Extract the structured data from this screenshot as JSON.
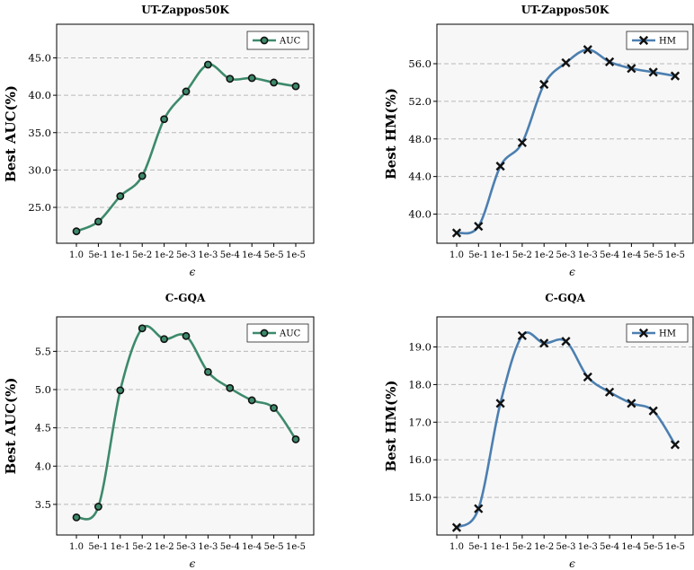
{
  "colors": {
    "auc": "#3d8a6b",
    "hm": "#4c7fb0",
    "grid": "#b8b8b8",
    "plot_bg": "#f7f7f7"
  },
  "chart_data": [
    {
      "type": "line",
      "title": "UT-Zappos50K",
      "xlabel": "ϵ",
      "ylabel": "Best AUC(%)",
      "categories": [
        "1.0",
        "5e-1",
        "1e-1",
        "5e-2",
        "1e-2",
        "5e-3",
        "1e-3",
        "5e-4",
        "1e-4",
        "5e-5",
        "1e-5"
      ],
      "series": [
        {
          "name": "AUC",
          "values": [
            21.8,
            23.1,
            26.5,
            29.2,
            36.8,
            40.5,
            44.1,
            42.2,
            42.3,
            41.7,
            41.2
          ]
        }
      ],
      "yticks": [
        25.0,
        30.0,
        35.0,
        40.0,
        45.0
      ],
      "ylim": [
        20.2,
        49.5
      ],
      "marker": "circle",
      "color_key": "auc",
      "grid": "y-dashed",
      "legend": "top-right"
    },
    {
      "type": "line",
      "title": "UT-Zappos50K",
      "xlabel": "ϵ",
      "ylabel": "Best HM(%)",
      "categories": [
        "1.0",
        "5e-1",
        "1e-1",
        "5e-2",
        "1e-2",
        "5e-3",
        "1e-3",
        "5e-4",
        "1e-4",
        "5e-5",
        "1e-5"
      ],
      "series": [
        {
          "name": "HM",
          "values": [
            38.0,
            38.7,
            45.1,
            47.6,
            53.8,
            56.1,
            57.5,
            56.2,
            55.5,
            55.1,
            54.7
          ]
        }
      ],
      "yticks": [
        40.0,
        44.0,
        48.0,
        52.0,
        56.0
      ],
      "ylim": [
        36.9,
        60.2
      ],
      "marker": "x",
      "color_key": "hm",
      "grid": "y-dashed",
      "legend": "top-right"
    },
    {
      "type": "line",
      "title": "C-GQA",
      "xlabel": "ϵ",
      "ylabel": "Best AUC(%)",
      "categories": [
        "1.0",
        "5e-1",
        "1e-1",
        "5e-2",
        "1e-2",
        "5e-3",
        "1e-3",
        "5e-4",
        "1e-4",
        "5e-5",
        "1e-5"
      ],
      "series": [
        {
          "name": "AUC",
          "values": [
            3.33,
            3.47,
            4.99,
            5.8,
            5.66,
            5.7,
            5.23,
            5.02,
            4.86,
            4.76,
            4.35
          ]
        }
      ],
      "yticks": [
        3.5,
        4.0,
        4.5,
        5.0,
        5.5
      ],
      "ylim": [
        3.1,
        5.95
      ],
      "marker": "circle",
      "color_key": "auc",
      "grid": "y-dashed",
      "legend": "top-right"
    },
    {
      "type": "line",
      "title": "C-GQA",
      "xlabel": "ϵ",
      "ylabel": "Best HM(%)",
      "categories": [
        "1.0",
        "5e-1",
        "1e-1",
        "5e-2",
        "1e-2",
        "5e-3",
        "1e-3",
        "5e-4",
        "1e-4",
        "5e-5",
        "1e-5"
      ],
      "series": [
        {
          "name": "HM",
          "values": [
            14.2,
            14.7,
            17.5,
            19.3,
            19.1,
            19.15,
            18.2,
            17.8,
            17.5,
            17.3,
            16.4
          ]
        }
      ],
      "yticks": [
        15.0,
        16.0,
        17.0,
        18.0,
        19.0
      ],
      "ylim": [
        14.0,
        19.8
      ],
      "marker": "x",
      "color_key": "hm",
      "grid": "y-dashed",
      "legend": "top-right"
    }
  ]
}
